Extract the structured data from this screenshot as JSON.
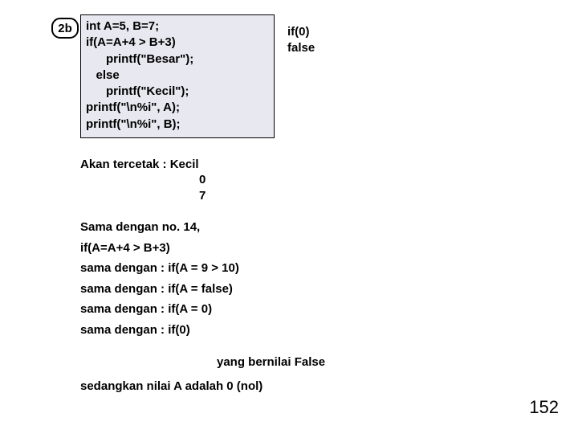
{
  "badge": "2b",
  "code_lines": [
    "int A=5, B=7;",
    "if(A=A+4 > B+3)",
    "      printf(\"Besar\");",
    "   else",
    "      printf(\"Kecil\");",
    "printf(\"\\n%i\", A);",
    "printf(\"\\n%i\", B);"
  ],
  "annot": {
    "title": "if(0)",
    "sub": "false"
  },
  "result_label": "Akan tercetak : Kecil",
  "result_values": [
    "0",
    "7"
  ],
  "explain_lines": [
    "Sama dengan no. 14,",
    "if(A=A+4 > B+3)",
    "sama dengan : if(A = 9 > 10)",
    "sama dengan : if(A = false)",
    "sama dengan : if(A = 0)",
    "sama dengan : if(0)"
  ],
  "yang": "yang bernilai False",
  "sedang": "sedangkan nilai A adalah 0 (nol)",
  "pagenum": "152"
}
